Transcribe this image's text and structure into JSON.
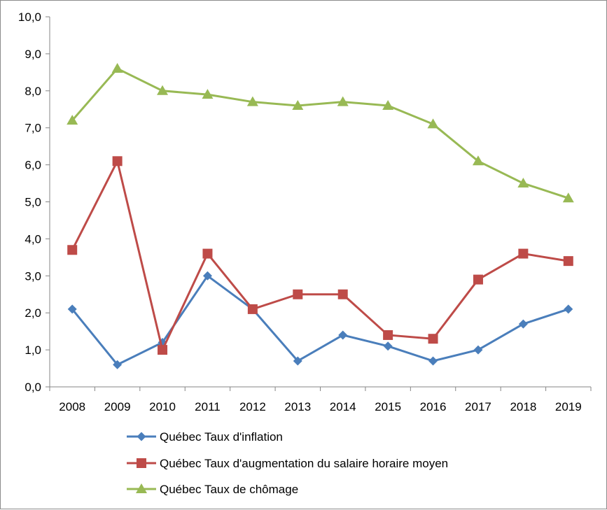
{
  "chart_data": {
    "type": "line",
    "categories": [
      "2008",
      "2009",
      "2010",
      "2011",
      "2012",
      "2013",
      "2014",
      "2015",
      "2016",
      "2017",
      "2018",
      "2019"
    ],
    "ylim": [
      0,
      10
    ],
    "yticks": [
      "0,0",
      "1,0",
      "2,0",
      "3,0",
      "4,0",
      "5,0",
      "6,0",
      "7,0",
      "8,0",
      "9,0",
      "10,0"
    ],
    "grid": false,
    "legend_position": "bottom",
    "series": [
      {
        "name": "Québec Taux d'inflation",
        "color": "#4a7ebb",
        "marker": "diamond",
        "values": [
          2.1,
          0.6,
          1.2,
          3.0,
          2.1,
          0.7,
          1.4,
          1.1,
          0.7,
          1.0,
          1.7,
          2.1
        ]
      },
      {
        "name": "Québec Taux d'augmentation du salaire horaire moyen",
        "color": "#be4b48",
        "marker": "square",
        "values": [
          3.7,
          6.1,
          1.0,
          3.6,
          2.1,
          2.5,
          2.5,
          1.4,
          1.3,
          2.9,
          3.6,
          3.4
        ]
      },
      {
        "name": "Québec Taux de chômage",
        "color": "#98b954",
        "marker": "triangle",
        "values": [
          7.2,
          8.6,
          8.0,
          7.9,
          7.7,
          7.6,
          7.7,
          7.6,
          7.1,
          6.1,
          5.5,
          5.1
        ]
      }
    ]
  }
}
